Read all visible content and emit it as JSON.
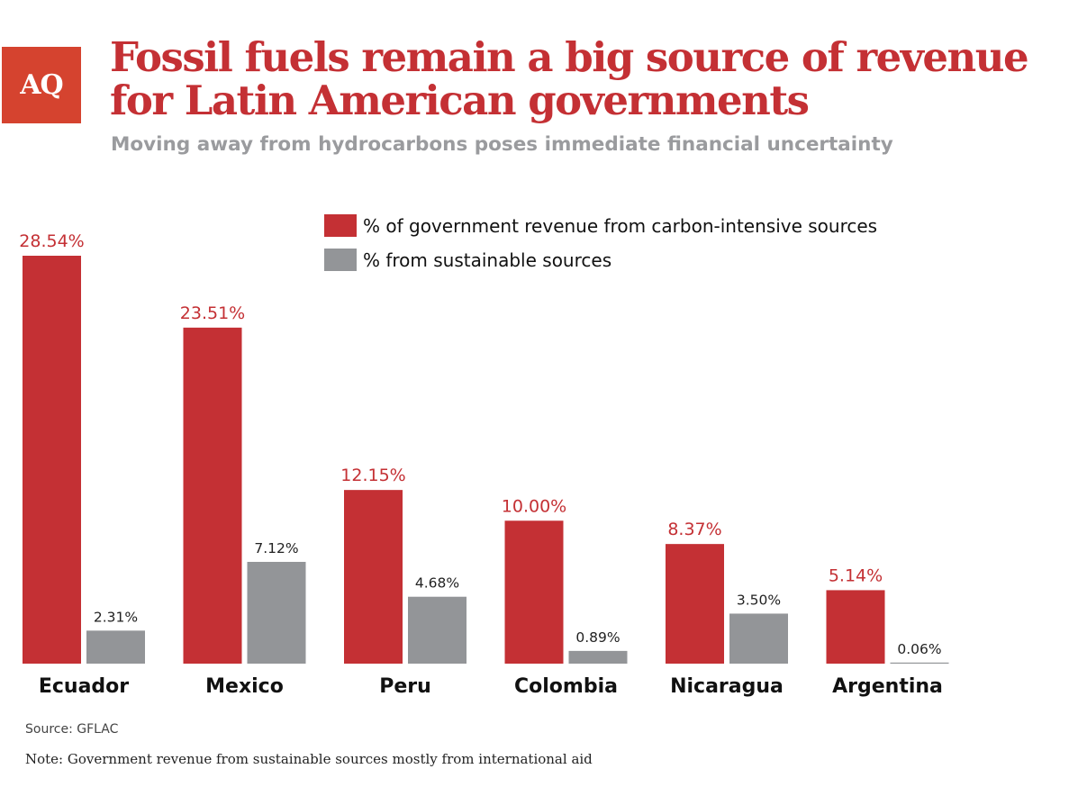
{
  "logo": "AQ",
  "colors": {
    "carbon": "#c43034",
    "sustainable": "#939598",
    "logo_bg": "#d5432f"
  },
  "chart_data": {
    "type": "bar",
    "title": "Fossil fuels remain a big source of revenue for Latin American governments",
    "subtitle": "Moving away from hydrocarbons poses immediate financial uncertainty",
    "categories": [
      "Ecuador",
      "Mexico",
      "Peru",
      "Colombia",
      "Nicaragua",
      "Argentina"
    ],
    "series": [
      {
        "name": "% of government revenue from carbon-intensive sources",
        "values": [
          28.54,
          23.51,
          12.15,
          10.0,
          8.37,
          5.14
        ],
        "labels": [
          "28.54%",
          "23.51%",
          "12.15%",
          "10.00%",
          "8.37%",
          "5.14%"
        ]
      },
      {
        "name": "% from sustainable sources",
        "values": [
          2.31,
          7.12,
          4.68,
          0.89,
          3.5,
          0.06
        ],
        "labels": [
          "2.31%",
          "7.12%",
          "4.68%",
          "0.89%",
          "3.50%",
          "0.06%"
        ]
      }
    ],
    "legend": "top-right",
    "grid": false,
    "ylim": [
      0,
      28.54
    ],
    "source": "Source: GFLAC",
    "note": "Note: Government revenue from sustainable sources mostly from international aid"
  }
}
